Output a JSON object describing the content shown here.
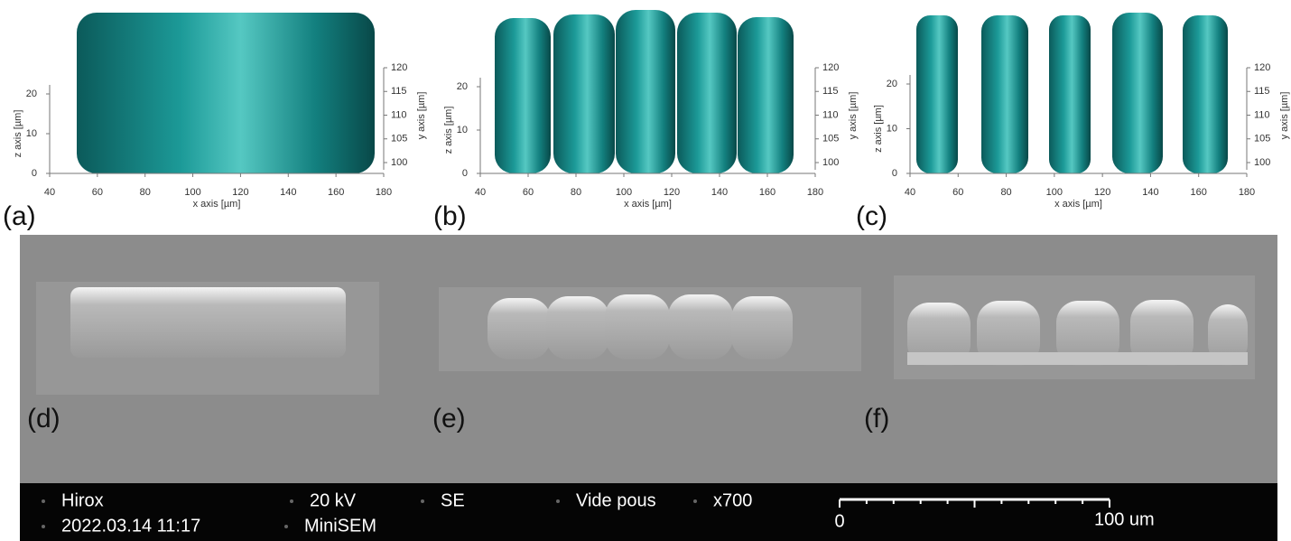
{
  "plots": [
    {
      "label": "(a)",
      "x_label": "x axis [µm]",
      "z_label": "z axis [µm]",
      "y_label": "y axis [µm]",
      "x_ticks": [
        40,
        60,
        80,
        100,
        120,
        140,
        160,
        180
      ],
      "z_ticks": [
        0,
        10,
        20
      ],
      "y_ticks": [
        100,
        105,
        110,
        115,
        120
      ]
    },
    {
      "label": "(b)",
      "x_label": "x axis [µm]",
      "z_label": "z axis [µm]",
      "y_label": "y axis [µm]",
      "x_ticks": [
        40,
        60,
        80,
        100,
        120,
        140,
        160,
        180
      ],
      "z_ticks": [
        0,
        10,
        20
      ],
      "y_ticks": [
        100,
        105,
        110,
        115,
        120
      ]
    },
    {
      "label": "(c)",
      "x_label": "x axis [µm]",
      "z_label": "z axis [µm]",
      "y_label": "y axis [µm]",
      "x_ticks": [
        40,
        60,
        80,
        100,
        120,
        140,
        160,
        180
      ],
      "z_ticks": [
        0,
        10,
        20
      ],
      "y_ticks": [
        100,
        105,
        110,
        115,
        120
      ]
    }
  ],
  "sem": {
    "labels": [
      "(d)",
      "(e)",
      "(f)"
    ],
    "info": {
      "row1": [
        "Hirox",
        "20 kV",
        "SE",
        "Vide pous",
        "x700"
      ],
      "row2": [
        "2022.03.14 11:17",
        "MiniSEM"
      ],
      "scale_start": "0",
      "scale_end": "100 um"
    }
  }
}
